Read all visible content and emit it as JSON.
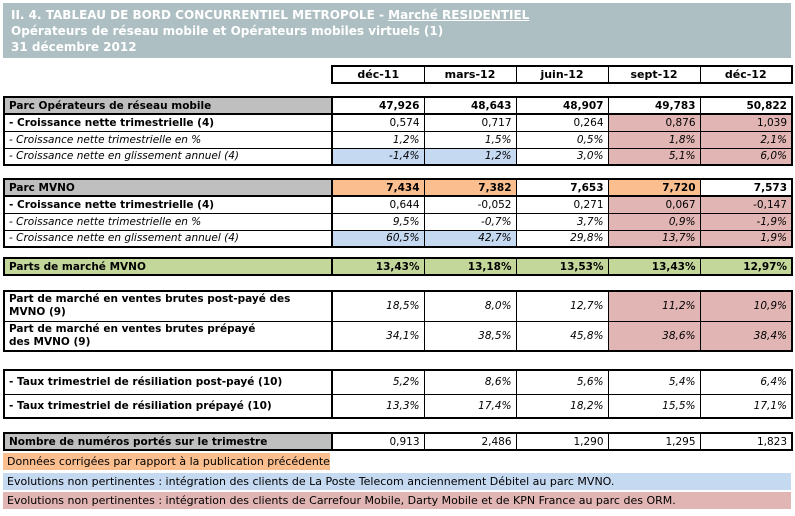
{
  "title": {
    "line1_prefix": "II. 4. TABLEAU DE BORD CONCURRENTIEL METROPOLE - ",
    "line1_underline": "Marché RESIDENTIEL",
    "line2": "Opérateurs de réseau mobile et Opérateurs mobiles virtuels (1)",
    "line3": "31 décembre 2012"
  },
  "columns": [
    "déc-11",
    "mars-12",
    "juin-12",
    "sept-12",
    "déc-12"
  ],
  "colors": {
    "banner_bg": "#adbfc2",
    "section_header_bg": "#bfbfbf",
    "green_row_bg": "#c4d79b",
    "corrected_orange": "#fbbf8f",
    "not_relevant_pink": "#e1b5b3",
    "not_relevant_blue": "#c5d9f1"
  },
  "sections": {
    "orm": {
      "parc": {
        "label": "Parc Opérateurs de réseau mobile",
        "values": [
          "47,926",
          "48,643",
          "48,907",
          "49,783",
          "50,822"
        ]
      },
      "croissance_trim": {
        "label": "- Croissance nette trimestrielle (4)",
        "values": [
          "0,574",
          "0,717",
          "0,264",
          "0,876",
          "1,039"
        ]
      },
      "croissance_trim_pct": {
        "label": "- Croissance nette trimestrielle en %",
        "values": [
          "1,2%",
          "1,5%",
          "0,5%",
          "1,8%",
          "2,1%"
        ]
      },
      "croissance_annuelle": {
        "label": "- Croissance nette en glissement annuel (4)",
        "values": [
          "-1,4%",
          "1,2%",
          "3,0%",
          "5,1%",
          "6,0%"
        ]
      }
    },
    "mvno": {
      "parc": {
        "label": "Parc MVNO",
        "values": [
          "7,434",
          "7,382",
          "7,653",
          "7,720",
          "7,573"
        ]
      },
      "croissance_trim": {
        "label": "- Croissance nette trimestrielle (4)",
        "values": [
          "0,644",
          "-0,052",
          "0,271",
          "0,067",
          "-0,147"
        ]
      },
      "croissance_trim_pct": {
        "label": "- Croissance nette trimestrielle en %",
        "values": [
          "9,5%",
          "-0,7%",
          "3,7%",
          "0,9%",
          "-1,9%"
        ]
      },
      "croissance_annuelle": {
        "label": "- Croissance nette en glissement annuel (4)",
        "values": [
          "60,5%",
          "42,7%",
          "29,8%",
          "13,7%",
          "1,9%"
        ]
      }
    },
    "parts_marche": {
      "label": "Parts de marché MVNO",
      "values": [
        "13,43%",
        "13,18%",
        "13,53%",
        "13,43%",
        "12,97%"
      ]
    },
    "ventes_brutes": {
      "postpaye": {
        "label": "Part de marché en ventes brutes post-payé des\nMVNO (9)",
        "values": [
          "18,5%",
          "8,0%",
          "12,7%",
          "11,2%",
          "10,9%"
        ]
      },
      "prepaye": {
        "label": "Part de marché en ventes brutes prépayé\ndes MVNO (9)",
        "values": [
          "34,1%",
          "38,5%",
          "45,8%",
          "38,6%",
          "38,4%"
        ]
      }
    },
    "resiliation": {
      "postpaye": {
        "label": "- Taux trimestriel de résiliation post-payé (10)",
        "values": [
          "5,2%",
          "8,6%",
          "5,6%",
          "5,4%",
          "6,4%"
        ]
      },
      "prepaye": {
        "label": "- Taux trimestriel de résiliation prépayé (10)",
        "values": [
          "13,3%",
          "17,4%",
          "18,2%",
          "15,5%",
          "17,1%"
        ]
      }
    },
    "numeros_portes": {
      "label": "Nombre de numéros portés sur le trimestre",
      "values": [
        "0,913",
        "2,486",
        "1,290",
        "1,295",
        "1,823"
      ]
    }
  },
  "legend": {
    "corrected": "Données corrigées par rapport à la publication précédente",
    "note_mvno": "Evolutions non pertinentes : intégration des clients de La Poste Telecom anciennement Débitel au parc MVNO.",
    "note_orm": "Evolutions non pertinentes : intégration des clients de Carrefour Mobile, Darty Mobile et de KPN France au parc des ORM."
  }
}
